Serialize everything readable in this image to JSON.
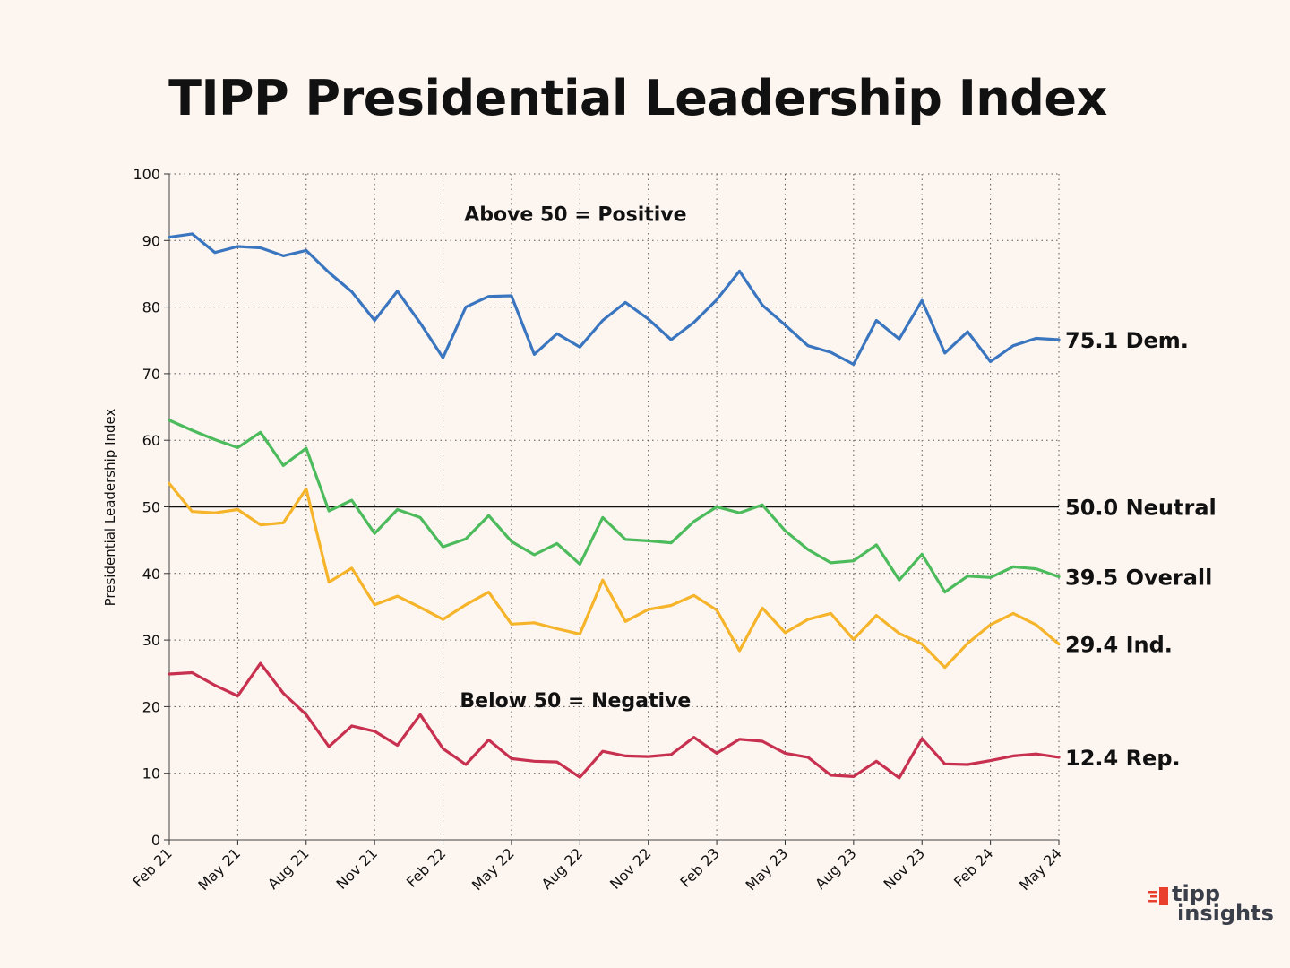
{
  "title": "TIPP Presidential Leadership Index",
  "logo": {
    "line1": "tipp",
    "line2": "insights",
    "accent": "#e8402c",
    "text_color": "#3a3f4a"
  },
  "chart_data": {
    "type": "line",
    "title": "TIPP Presidential Leadership Index",
    "ylabel": "Presidential Leadership Index",
    "xlabel": "",
    "ylim": [
      0,
      100
    ],
    "yticks": [
      0,
      10,
      20,
      30,
      40,
      50,
      60,
      70,
      80,
      90,
      100
    ],
    "xtick_labels": [
      "Feb 21",
      "May 21",
      "Aug 21",
      "Nov 21",
      "Feb 22",
      "May 22",
      "Aug 22",
      "Nov 22",
      "Feb 23",
      "May 23",
      "Aug 23",
      "Nov 23",
      "Feb 24",
      "May 24"
    ],
    "grid": true,
    "x": [
      "Feb 21",
      "Mar 21",
      "Apr 21",
      "May 21",
      "Jun 21",
      "Jul 21",
      "Aug 21",
      "Sep 21",
      "Oct 21",
      "Nov 21",
      "Dec 21",
      "Jan 22",
      "Feb 22",
      "Mar 22",
      "Apr 22",
      "May 22",
      "Jun 22",
      "Jul 22",
      "Aug 22",
      "Sep 22",
      "Oct 22",
      "Nov 22",
      "Dec 22",
      "Jan 23",
      "Feb 23",
      "Mar 23",
      "Apr 23",
      "May 23",
      "Jun 23",
      "Jul 23",
      "Aug 23",
      "Sep 23",
      "Oct 23",
      "Nov 23",
      "Dec 23",
      "Jan 24",
      "Feb 24",
      "Mar 24",
      "Apr 24",
      "May 24"
    ],
    "annotations": [
      {
        "text": "Above 50 = Positive",
        "x": "Jun 22",
        "y": 94
      },
      {
        "text": "Below 50 = Negative",
        "x": "Jun 22",
        "y": 21
      }
    ],
    "reference_line": {
      "y": 50,
      "label": "50.0 Neutral"
    },
    "series": [
      {
        "key": "dem",
        "end_label": "75.1 Dem.",
        "color": "#3a76c0",
        "values": [
          90.5,
          91.0,
          88.2,
          89.1,
          88.9,
          87.7,
          88.5,
          85.2,
          82.3,
          78.0,
          82.4,
          77.6,
          72.4,
          80.0,
          81.6,
          81.7,
          72.9,
          76.0,
          74.0,
          78.0,
          80.7,
          78.2,
          75.1,
          77.7,
          81.1,
          85.4,
          80.3,
          77.3,
          74.2,
          73.2,
          71.4,
          78.0,
          75.2,
          81.0,
          73.1,
          76.3,
          71.8,
          74.2,
          75.3,
          75.1
        ]
      },
      {
        "key": "overall",
        "end_label": "39.5 Overall",
        "color": "#4cbb5c",
        "values": [
          63.0,
          61.5,
          60.1,
          58.9,
          61.2,
          56.2,
          58.8,
          49.4,
          51.0,
          46.0,
          49.6,
          48.4,
          44.0,
          45.2,
          48.7,
          44.8,
          42.8,
          44.5,
          41.4,
          48.4,
          45.1,
          44.9,
          44.6,
          47.8,
          50.0,
          49.1,
          50.3,
          46.4,
          43.6,
          41.6,
          41.9,
          44.3,
          39.0,
          42.9,
          37.2,
          39.6,
          39.4,
          41.0,
          40.7,
          39.5
        ]
      },
      {
        "key": "ind",
        "end_label": "29.4 Ind.",
        "color": "#f6b42a",
        "values": [
          53.5,
          49.3,
          49.1,
          49.6,
          47.3,
          47.6,
          52.7,
          38.7,
          40.8,
          35.3,
          36.6,
          34.9,
          33.1,
          35.3,
          37.2,
          32.4,
          32.6,
          31.7,
          30.9,
          39.0,
          32.8,
          34.6,
          35.2,
          36.7,
          34.5,
          28.4,
          34.8,
          31.1,
          33.1,
          34.0,
          30.1,
          33.7,
          31.0,
          29.4,
          25.9,
          29.5,
          32.3,
          34.0,
          32.3,
          29.4
        ]
      },
      {
        "key": "rep",
        "end_label": "12.4 Rep.",
        "color": "#c7304f",
        "values": [
          24.9,
          25.1,
          23.2,
          21.6,
          26.5,
          22.0,
          18.8,
          14.0,
          17.1,
          16.3,
          14.2,
          18.8,
          13.7,
          11.3,
          15.0,
          12.2,
          11.8,
          11.7,
          9.4,
          13.3,
          12.6,
          12.5,
          12.8,
          15.4,
          13.0,
          15.1,
          14.8,
          13.0,
          12.4,
          9.7,
          9.5,
          11.8,
          9.3,
          15.2,
          11.4,
          11.3,
          11.9,
          12.6,
          12.9,
          12.4
        ]
      }
    ]
  }
}
